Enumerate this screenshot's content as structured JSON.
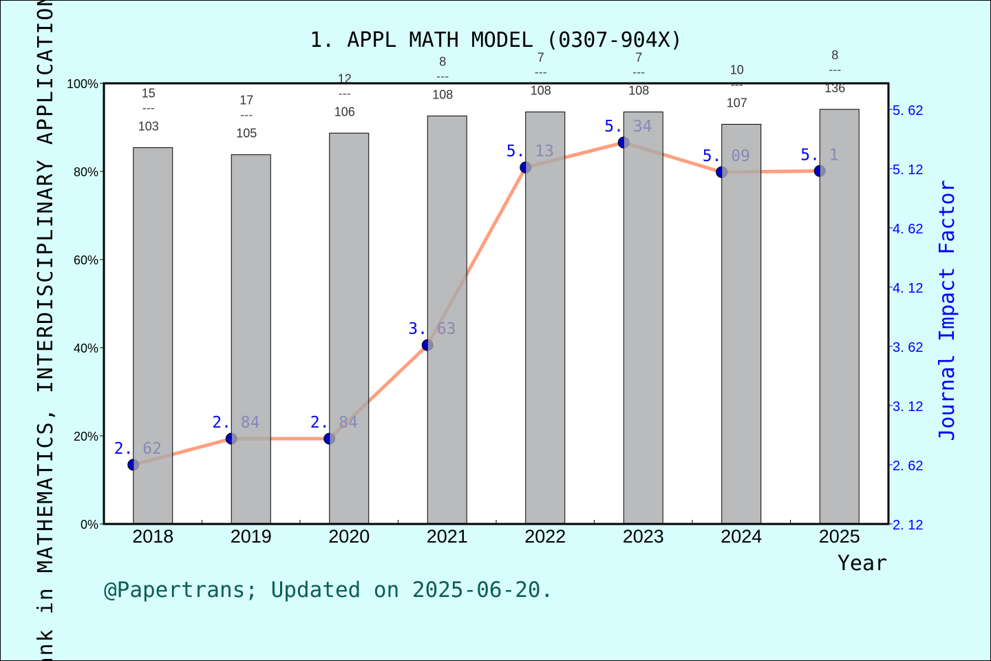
{
  "chart_data": {
    "type": "bar+line",
    "title": "1. APPL MATH MODEL (0307-904X)",
    "xlabel": "Year",
    "ylabel_left": "Rank in MATHEMATICS, INTERDISCIPLINARY APPLICATIONS",
    "ylabel_right": "Journal Impact Factor",
    "categories": [
      "2018",
      "2019",
      "2020",
      "2021",
      "2022",
      "2023",
      "2024",
      "2025"
    ],
    "left_axis": {
      "ylim": [
        0,
        100
      ],
      "ticks": [
        "0%",
        "20%",
        "40%",
        "60%",
        "80%",
        "100%"
      ],
      "tick_values": [
        0,
        20,
        40,
        60,
        80,
        100
      ]
    },
    "right_axis": {
      "ylim": [
        2.12,
        5.84
      ],
      "ticks": [
        "2. 12",
        "2. 62",
        "3. 12",
        "3. 62",
        "4. 12",
        "4. 62",
        "5. 12",
        "5. 62"
      ],
      "tick_values": [
        2.12,
        2.62,
        3.12,
        3.62,
        4.12,
        4.62,
        5.12,
        5.62
      ]
    },
    "bars": {
      "ranks": [
        15,
        17,
        12,
        8,
        7,
        7,
        10,
        8
      ],
      "totals": [
        103,
        105,
        106,
        108,
        108,
        108,
        107,
        136
      ],
      "values_percent": [
        85.4,
        83.8,
        88.7,
        92.6,
        93.5,
        93.5,
        90.7,
        94.1
      ]
    },
    "impact_factor": {
      "values": [
        2.62,
        2.84,
        2.84,
        3.63,
        5.13,
        5.34,
        5.09,
        5.1
      ],
      "labels": [
        "2. 62",
        "2. 84",
        "2. 84",
        "3. 63",
        "5. 13",
        "5. 34",
        "5. 09",
        "5. 1"
      ]
    },
    "grid": false,
    "colors": {
      "background": "#d8fdfd",
      "plot": "#ffffff",
      "bar": "#a9aaab",
      "line": "#ff9f7f",
      "marker": "#0000cc",
      "right_axis": "#0000ff",
      "footer": "#0b5e55"
    }
  },
  "footer": "@Papertrans; Updated on 2025-06-20."
}
